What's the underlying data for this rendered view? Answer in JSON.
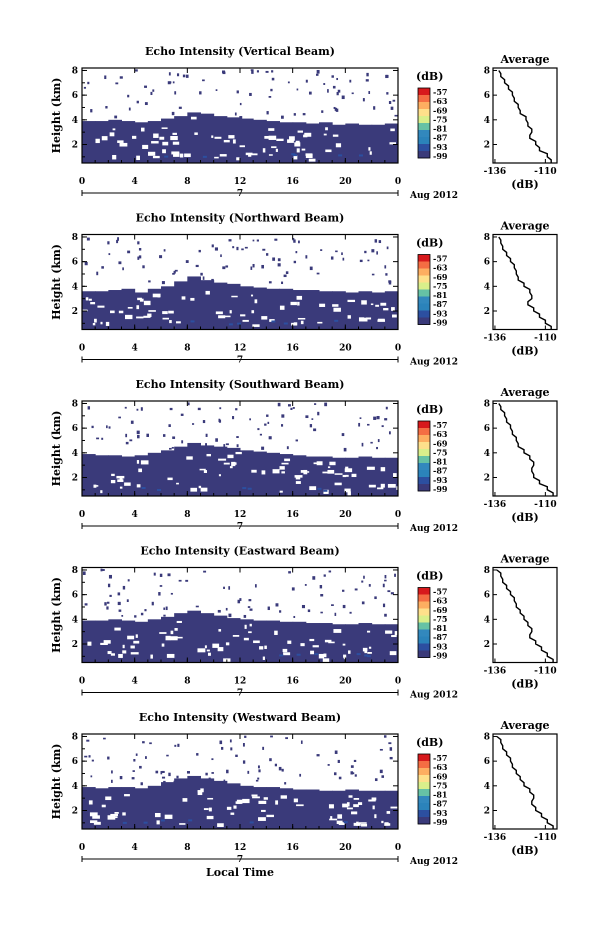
{
  "chart_data": [
    {
      "type": "heatmap",
      "title": "Echo Intensity (Vertical Beam)",
      "ylabel": "Height (km)",
      "x_ticks": [
        "0",
        "4",
        "8",
        "12",
        "16",
        "20",
        "0"
      ],
      "y_ticks": [
        "2",
        "4",
        "6",
        "8"
      ],
      "date_label": "7",
      "month_label": "Aug 2012",
      "cloud_top_km": [
        3.9,
        3.9,
        4.0,
        3.9,
        3.8,
        3.9,
        4.1,
        4.3,
        4.6,
        4.5,
        4.3,
        4.2,
        4.1,
        4.0,
        3.9,
        3.8,
        3.8,
        3.7,
        3.8,
        3.6,
        3.7,
        3.6,
        3.6,
        3.7
      ],
      "colorbar": {
        "label": "(dB)",
        "ticks": [
          "-57",
          "-63",
          "-69",
          "-75",
          "-81",
          "-87",
          "-93",
          "-99"
        ]
      },
      "average_profile": {
        "title": "Average",
        "xlabel": "(dB)",
        "x_ticks": [
          "-136",
          "-110"
        ],
        "y_ticks": [
          "2",
          "4",
          "6",
          "8"
        ],
        "height_km": [
          0.5,
          1.0,
          1.5,
          2.0,
          2.5,
          3.0,
          3.5,
          4.0,
          4.5,
          5.0,
          5.5,
          6.0,
          6.5,
          7.0,
          7.5,
          8.0
        ],
        "db": [
          -107,
          -109,
          -113,
          -115,
          -118,
          -117,
          -119,
          -120,
          -123,
          -124,
          -126,
          -127,
          -129,
          -131,
          -133,
          -134
        ]
      }
    },
    {
      "type": "heatmap",
      "title": "Echo Intensity (Northward Beam)",
      "ylabel": "Height (km)",
      "x_ticks": [
        "0",
        "4",
        "8",
        "12",
        "16",
        "20",
        "0"
      ],
      "y_ticks": [
        "2",
        "4",
        "6",
        "8"
      ],
      "date_label": "7",
      "month_label": "Aug 2012",
      "cloud_top_km": [
        3.6,
        3.6,
        3.7,
        3.8,
        3.5,
        3.8,
        4.0,
        4.4,
        4.8,
        4.5,
        4.3,
        4.2,
        4.0,
        3.9,
        3.8,
        3.8,
        3.7,
        3.7,
        3.6,
        3.6,
        3.5,
        3.6,
        3.5,
        3.6
      ],
      "colorbar": {
        "label": "(dB)",
        "ticks": [
          "-57",
          "-63",
          "-69",
          "-75",
          "-81",
          "-87",
          "-93",
          "-99"
        ]
      },
      "average_profile": {
        "title": "Average",
        "xlabel": "(dB)",
        "x_ticks": [
          "-136",
          "-110"
        ],
        "y_ticks": [
          "2",
          "4",
          "6",
          "8"
        ],
        "height_km": [
          0.5,
          1.0,
          1.5,
          2.0,
          2.5,
          3.0,
          3.5,
          4.0,
          4.5,
          5.0,
          5.5,
          6.0,
          6.5,
          7.0,
          7.5,
          8.0
        ],
        "db": [
          -107,
          -110,
          -113,
          -116,
          -119,
          -117,
          -118,
          -121,
          -124,
          -125,
          -126,
          -128,
          -130,
          -132,
          -133,
          -134
        ]
      }
    },
    {
      "type": "heatmap",
      "title": "Echo Intensity (Southward Beam)",
      "ylabel": "Height (km)",
      "x_ticks": [
        "0",
        "4",
        "8",
        "12",
        "16",
        "20",
        "0"
      ],
      "y_ticks": [
        "2",
        "4",
        "6",
        "8"
      ],
      "date_label": "7",
      "month_label": "Aug 2012",
      "cloud_top_km": [
        3.9,
        3.8,
        3.8,
        3.7,
        3.8,
        4.0,
        4.2,
        4.5,
        4.8,
        4.6,
        4.5,
        4.4,
        4.2,
        4.1,
        4.0,
        3.9,
        3.8,
        3.7,
        3.7,
        3.6,
        3.6,
        3.7,
        3.6,
        3.6
      ],
      "colorbar": {
        "label": "(dB)",
        "ticks": [
          "-57",
          "-63",
          "-69",
          "-75",
          "-81",
          "-87",
          "-93",
          "-99"
        ]
      },
      "average_profile": {
        "title": "Average",
        "xlabel": "(dB)",
        "x_ticks": [
          "-136",
          "-110"
        ],
        "y_ticks": [
          "2",
          "4",
          "6",
          "8"
        ],
        "height_km": [
          0.5,
          1.0,
          1.5,
          2.0,
          2.5,
          3.0,
          3.5,
          4.0,
          4.5,
          5.0,
          5.5,
          6.0,
          6.5,
          7.0,
          7.5,
          8.0
        ],
        "db": [
          -106,
          -109,
          -113,
          -116,
          -117,
          -116,
          -118,
          -121,
          -124,
          -125,
          -127,
          -128,
          -130,
          -131,
          -133,
          -134
        ]
      }
    },
    {
      "type": "heatmap",
      "title": "Echo Intensity (Eastward Beam)",
      "ylabel": "Height (km)",
      "x_ticks": [
        "0",
        "4",
        "8",
        "12",
        "16",
        "20",
        "0"
      ],
      "y_ticks": [
        "2",
        "4",
        "6",
        "8"
      ],
      "date_label": "7",
      "month_label": "Aug 2012",
      "cloud_top_km": [
        3.9,
        3.9,
        4.0,
        3.9,
        3.8,
        4.0,
        4.2,
        4.5,
        4.7,
        4.5,
        4.3,
        4.1,
        4.0,
        3.9,
        3.9,
        3.8,
        3.8,
        3.7,
        3.7,
        3.6,
        3.6,
        3.7,
        3.6,
        3.6
      ],
      "colorbar": {
        "label": "(dB)",
        "ticks": [
          "-57",
          "-63",
          "-69",
          "-75",
          "-81",
          "-87",
          "-93",
          "-99"
        ]
      },
      "average_profile": {
        "title": "Average",
        "xlabel": "(dB)",
        "x_ticks": [
          "-136",
          "-110"
        ],
        "y_ticks": [
          "2",
          "4",
          "6",
          "8"
        ],
        "height_km": [
          0.5,
          1.0,
          1.5,
          2.0,
          2.5,
          3.0,
          3.5,
          4.0,
          4.5,
          5.0,
          5.5,
          6.0,
          6.5,
          7.0,
          7.5,
          8.0
        ],
        "db": [
          -106,
          -109,
          -112,
          -115,
          -118,
          -117,
          -119,
          -121,
          -123,
          -125,
          -126,
          -128,
          -130,
          -132,
          -133,
          -135
        ]
      }
    },
    {
      "type": "heatmap",
      "title": "Echo Intensity (Westward Beam)",
      "ylabel": "Height (km)",
      "xlabel": "Local Time",
      "x_ticks": [
        "0",
        "4",
        "8",
        "12",
        "16",
        "20",
        "0"
      ],
      "y_ticks": [
        "2",
        "4",
        "6",
        "8"
      ],
      "date_label": "7",
      "month_label": "Aug 2012",
      "cloud_top_km": [
        3.9,
        3.8,
        3.9,
        3.9,
        3.8,
        4.0,
        4.3,
        4.6,
        4.8,
        4.6,
        4.4,
        4.2,
        4.0,
        3.9,
        3.9,
        3.8,
        3.7,
        3.7,
        3.6,
        3.6,
        3.7,
        3.6,
        3.6,
        3.6
      ],
      "colorbar": {
        "label": "(dB)",
        "ticks": [
          "-57",
          "-63",
          "-69",
          "-75",
          "-81",
          "-87",
          "-93",
          "-99"
        ]
      },
      "average_profile": {
        "title": "Average",
        "xlabel": "(dB)",
        "x_ticks": [
          "-136",
          "-110"
        ],
        "y_ticks": [
          "2",
          "4",
          "6",
          "8"
        ],
        "height_km": [
          0.5,
          1.0,
          1.5,
          2.0,
          2.5,
          3.0,
          3.5,
          4.0,
          4.5,
          5.0,
          5.5,
          6.0,
          6.5,
          7.0,
          7.5,
          8.0
        ],
        "db": [
          -106,
          -109,
          -112,
          -115,
          -117,
          -116,
          -118,
          -121,
          -123,
          -125,
          -127,
          -128,
          -130,
          -132,
          -133,
          -135
        ]
      }
    }
  ],
  "colors": {
    "echo_fill": "#3a3a7a",
    "colorbar": [
      "#d7191c",
      "#f46d43",
      "#fdae61",
      "#fee08b",
      "#d9ef8b",
      "#66c2a5",
      "#3288bd",
      "#2b83ba",
      "#2c4fa0",
      "#3a3a7a"
    ],
    "axis": "#000000",
    "background": "#ffffff"
  }
}
